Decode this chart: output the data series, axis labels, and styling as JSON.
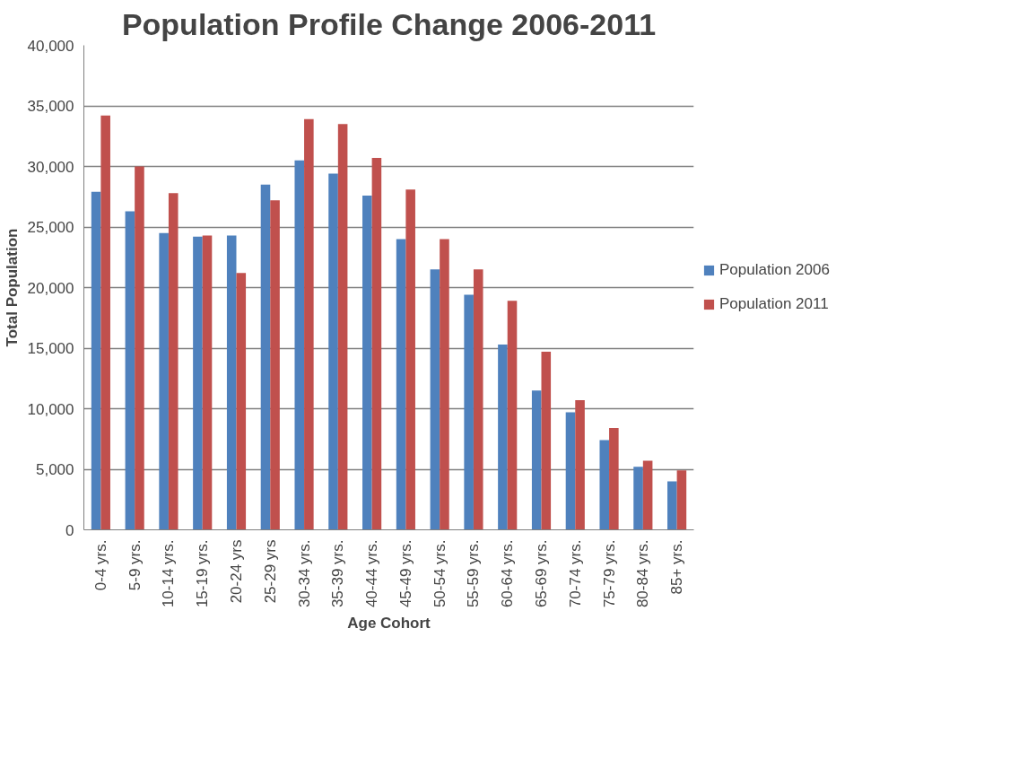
{
  "chart_data": {
    "type": "bar",
    "title": "Population Profile Change 2006-2011",
    "xlabel": "Age Cohort",
    "ylabel": "Total Population",
    "categories": [
      "0-4 yrs.",
      "5-9 yrs.",
      "10-14 yrs.",
      "15-19 yrs.",
      "20-24 yrs",
      "25-29 yrs",
      "30-34 yrs.",
      "35-39 yrs.",
      "40-44 yrs.",
      "45-49 yrs.",
      "50-54 yrs.",
      "55-59 yrs.",
      "60-64 yrs.",
      "65-69 yrs.",
      "70-74 yrs.",
      "75-79 yrs.",
      "80-84 yrs.",
      "85+ yrs."
    ],
    "series": [
      {
        "name": "Population 2006",
        "color": "#4f81bd",
        "values": [
          27900,
          26300,
          24500,
          24200,
          24300,
          28500,
          30500,
          29400,
          27600,
          24000,
          21500,
          19400,
          15300,
          11500,
          9700,
          7400,
          5200,
          4000
        ]
      },
      {
        "name": "Population 2011",
        "color": "#c0504d",
        "values": [
          34200,
          30000,
          27800,
          24300,
          21200,
          27200,
          33900,
          33500,
          30700,
          28100,
          24000,
          21500,
          18900,
          14700,
          10700,
          8400,
          5700,
          4900
        ]
      }
    ],
    "ylim": [
      0,
      40000
    ],
    "yticks": [
      {
        "value": 0,
        "label": "0"
      },
      {
        "value": 5000,
        "label": "5,000"
      },
      {
        "value": 10000,
        "label": "10,000"
      },
      {
        "value": 15000,
        "label": "15,000"
      },
      {
        "value": 20000,
        "label": "20,000"
      },
      {
        "value": 25000,
        "label": "25,000"
      },
      {
        "value": 30000,
        "label": "30,000"
      },
      {
        "value": 35000,
        "label": "35,000"
      },
      {
        "value": 40000,
        "label": "40,000"
      }
    ],
    "grid": "y",
    "legend": "right"
  }
}
